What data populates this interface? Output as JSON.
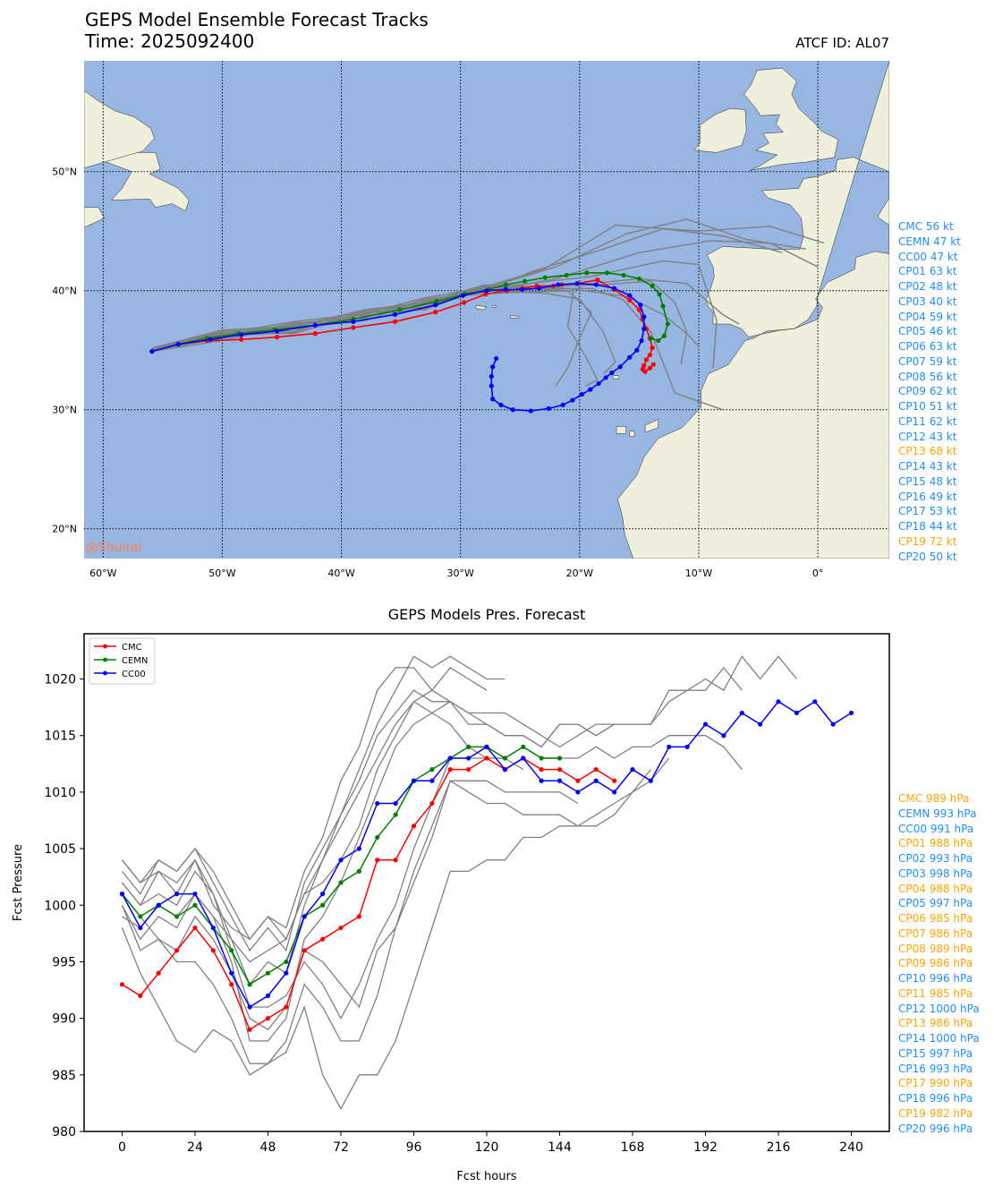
{
  "header": {
    "title": "GEPS Model Ensemble Forecast Tracks",
    "time": "Time: 2025092400",
    "atcf": "ATCF ID: AL07",
    "watermark": "@Shuitai"
  },
  "colors": {
    "ocean": "#98b6e2",
    "land": "#efefdb",
    "cmc": "#ff0000",
    "cemn": "#008000",
    "cc00": "#0000ff",
    "member": "#808080",
    "label_blue": "#1e90ff",
    "label_orange": "#ffa500",
    "watermark": "#ff7f50"
  },
  "chart_data": [
    {
      "type": "line",
      "title": "GEPS Model Ensemble Forecast Tracks",
      "subtitle": "Time: 2025092400",
      "xlim": [
        -61.6,
        6.0
      ],
      "ylim": [
        17.5,
        59.3
      ],
      "x_ticks": [
        -60,
        -50,
        -40,
        -30,
        -20,
        -10,
        0
      ],
      "x_tick_labels": [
        "60°W",
        "50°W",
        "40°W",
        "30°W",
        "20°W",
        "10°W",
        "0°"
      ],
      "y_ticks": [
        20,
        30,
        40,
        50
      ],
      "y_tick_labels": [
        "20°N",
        "30°N",
        "40°N",
        "50°N"
      ],
      "grid": true,
      "series": [
        {
          "name": "CMC",
          "color": "#ff0000",
          "markers": true,
          "lon": [
            -55.9,
            -53.7,
            -51.3,
            -48.4,
            -45.4,
            -42.2,
            -39.0,
            -35.5,
            -32.1,
            -29.7,
            -27.9,
            -26.1,
            -24.8,
            -23.6,
            -22.2,
            -21.5,
            -20.2,
            -18.5,
            -17.1,
            -15.8,
            -15.0,
            -14.7,
            -14.4,
            -14.1,
            -13.9,
            -14.1,
            -14.4,
            -14.6,
            -14.7,
            -14.5,
            -14.1,
            -13.8
          ],
          "lat": [
            34.9,
            35.5,
            35.8,
            35.9,
            36.1,
            36.4,
            36.9,
            37.4,
            38.2,
            39.0,
            39.7,
            40.0,
            40.2,
            40.4,
            40.4,
            40.5,
            40.6,
            40.9,
            40.1,
            39.2,
            38.4,
            37.6,
            36.8,
            36.0,
            35.2,
            34.6,
            34.2,
            33.7,
            33.4,
            33.2,
            33.5,
            33.8
          ]
        },
        {
          "name": "CEMN",
          "color": "#008000",
          "markers": true,
          "lon": [
            -55.9,
            -53.7,
            -51.3,
            -48.6,
            -45.6,
            -42.2,
            -39.0,
            -35.1,
            -32.0,
            -29.6,
            -27.6,
            -26.2,
            -24.6,
            -22.9,
            -21.1,
            -19.4,
            -17.7,
            -16.3,
            -15.0,
            -13.9,
            -13.3,
            -13.0,
            -12.6,
            -12.9,
            -13.4,
            -14.0
          ],
          "lat": [
            34.9,
            35.5,
            36.0,
            36.4,
            36.7,
            37.1,
            37.6,
            38.4,
            39.1,
            39.7,
            40.1,
            40.5,
            40.8,
            41.1,
            41.3,
            41.5,
            41.5,
            41.3,
            41.0,
            40.4,
            39.7,
            38.7,
            37.2,
            36.2,
            35.8,
            36.0
          ]
        },
        {
          "name": "CC00",
          "color": "#0000ff",
          "markers": true,
          "lon": [
            -55.9,
            -53.7,
            -51.0,
            -48.4,
            -45.4,
            -42.2,
            -39.0,
            -35.5,
            -32.1,
            -29.8,
            -27.8,
            -26.2,
            -24.8,
            -23.4,
            -21.8,
            -20.2,
            -18.6,
            -17.1,
            -15.8,
            -14.9,
            -14.6,
            -14.6,
            -14.8,
            -15.2,
            -15.8,
            -16.6,
            -17.3,
            -17.8,
            -18.4,
            -19.1,
            -19.8,
            -20.6,
            -21.4,
            -22.6,
            -24.1,
            -25.6,
            -26.6,
            -27.3,
            -27.4,
            -27.4,
            -27.3,
            -27.0
          ],
          "lat": [
            34.9,
            35.5,
            35.9,
            36.3,
            36.6,
            37.1,
            37.4,
            38.0,
            38.8,
            39.6,
            40.0,
            40.1,
            40.1,
            40.2,
            40.5,
            40.6,
            40.5,
            40.2,
            39.6,
            38.8,
            37.8,
            36.8,
            35.8,
            35.0,
            34.4,
            33.6,
            33.1,
            32.7,
            32.2,
            31.7,
            31.3,
            30.8,
            30.4,
            30.1,
            29.9,
            30.0,
            30.4,
            30.9,
            32.0,
            32.8,
            33.6,
            34.3
          ]
        }
      ],
      "labels": [
        {
          "text": "CMC 56 kt",
          "color": "#1e90ff"
        },
        {
          "text": "CEMN 47 kt",
          "color": "#1e90ff"
        },
        {
          "text": "CC00 47 kt",
          "color": "#1e90ff"
        },
        {
          "text": "CP01 63 kt",
          "color": "#1e90ff"
        },
        {
          "text": "CP02 48 kt",
          "color": "#1e90ff"
        },
        {
          "text": "CP03 40 kt",
          "color": "#1e90ff"
        },
        {
          "text": "CP04 59 kt",
          "color": "#1e90ff"
        },
        {
          "text": "CP05 46 kt",
          "color": "#1e90ff"
        },
        {
          "text": "CP06 63 kt",
          "color": "#1e90ff"
        },
        {
          "text": "CP07 59 kt",
          "color": "#1e90ff"
        },
        {
          "text": "CP08 56 kt",
          "color": "#1e90ff"
        },
        {
          "text": "CP09 62 kt",
          "color": "#1e90ff"
        },
        {
          "text": "CP10 51 kt",
          "color": "#1e90ff"
        },
        {
          "text": "CP11 62 kt",
          "color": "#1e90ff"
        },
        {
          "text": "CP12 43 kt",
          "color": "#1e90ff"
        },
        {
          "text": "CP13 68 kt",
          "color": "#ffa500"
        },
        {
          "text": "CP14 43 kt",
          "color": "#1e90ff"
        },
        {
          "text": "CP15 48 kt",
          "color": "#1e90ff"
        },
        {
          "text": "CP16 49 kt",
          "color": "#1e90ff"
        },
        {
          "text": "CP17 53 kt",
          "color": "#1e90ff"
        },
        {
          "text": "CP18 44 kt",
          "color": "#1e90ff"
        },
        {
          "text": "CP19 72 kt",
          "color": "#ffa500"
        },
        {
          "text": "CP20 50 kt",
          "color": "#1e90ff"
        }
      ]
    },
    {
      "type": "line",
      "title": "GEPS Models Pres. Forecast",
      "xlabel": "Fcst hours",
      "ylabel": "Fcst Pressure",
      "xlim": [
        -12.5,
        252.5
      ],
      "ylim": [
        980,
        1024
      ],
      "x_ticks": [
        0,
        24,
        48,
        72,
        96,
        120,
        144,
        168,
        192,
        216,
        240
      ],
      "y_ticks": [
        980,
        985,
        990,
        995,
        1000,
        1005,
        1010,
        1015,
        1020
      ],
      "grid": false,
      "legend": "upper-left",
      "series": [
        {
          "name": "CMC",
          "color": "#ff0000",
          "markers": true,
          "x": [
            0,
            6,
            12,
            18,
            24,
            30,
            36,
            42,
            48,
            54,
            60,
            66,
            72,
            78,
            84,
            90,
            96,
            102,
            108,
            114,
            120,
            126,
            132,
            138,
            144,
            150,
            156,
            162
          ],
          "y": [
            993,
            992,
            994,
            996,
            998,
            996,
            993,
            989,
            990,
            991,
            996,
            997,
            998,
            999,
            1004,
            1004,
            1007,
            1009,
            1012,
            1012,
            1013,
            1012,
            1013,
            1012,
            1012,
            1011,
            1012,
            1011
          ]
        },
        {
          "name": "CEMN",
          "color": "#008000",
          "markers": true,
          "x": [
            0,
            6,
            12,
            18,
            24,
            30,
            36,
            42,
            48,
            54,
            60,
            66,
            72,
            78,
            84,
            90,
            96,
            102,
            108,
            114,
            120,
            126,
            132,
            138,
            144
          ],
          "y": [
            1001,
            999,
            1000,
            999,
            1000,
            998,
            996,
            993,
            994,
            995,
            999,
            1000,
            1002,
            1003,
            1006,
            1008,
            1011,
            1012,
            1013,
            1014,
            1014,
            1013,
            1014,
            1013,
            1013
          ]
        },
        {
          "name": "CC00",
          "color": "#0000ff",
          "markers": true,
          "x": [
            0,
            6,
            12,
            18,
            24,
            30,
            36,
            42,
            48,
            54,
            60,
            66,
            72,
            78,
            84,
            90,
            96,
            102,
            108,
            114,
            120,
            126,
            132,
            138,
            144,
            150,
            156,
            162,
            168,
            174,
            180,
            186,
            192,
            198,
            204,
            210,
            216,
            222,
            228,
            234,
            240
          ],
          "y": [
            1001,
            998,
            1000,
            1001,
            1001,
            998,
            994,
            991,
            992,
            994,
            999,
            1001,
            1004,
            1005,
            1009,
            1009,
            1011,
            1011,
            1013,
            1013,
            1014,
            1012,
            1013,
            1011,
            1011,
            1010,
            1011,
            1010,
            1012,
            1011,
            1014,
            1014,
            1016,
            1015,
            1017,
            1016,
            1018,
            1017,
            1018,
            1016,
            1017
          ]
        }
      ],
      "labels": [
        {
          "text": "CMC 989 hPa",
          "color": "#ffa500"
        },
        {
          "text": "CEMN 993 hPa",
          "color": "#1e90ff"
        },
        {
          "text": "CC00 991 hPa",
          "color": "#1e90ff"
        },
        {
          "text": "CP01 988 hPa",
          "color": "#ffa500"
        },
        {
          "text": "CP02 993 hPa",
          "color": "#1e90ff"
        },
        {
          "text": "CP03 998 hPa",
          "color": "#1e90ff"
        },
        {
          "text": "CP04 988 hPa",
          "color": "#ffa500"
        },
        {
          "text": "CP05 997 hPa",
          "color": "#1e90ff"
        },
        {
          "text": "CP06 985 hPa",
          "color": "#ffa500"
        },
        {
          "text": "CP07 986 hPa",
          "color": "#ffa500"
        },
        {
          "text": "CP08 989 hPa",
          "color": "#ffa500"
        },
        {
          "text": "CP09 986 hPa",
          "color": "#ffa500"
        },
        {
          "text": "CP10 996 hPa",
          "color": "#1e90ff"
        },
        {
          "text": "CP11 985 hPa",
          "color": "#ffa500"
        },
        {
          "text": "CP12 1000 hPa",
          "color": "#1e90ff"
        },
        {
          "text": "CP13 986 hPa",
          "color": "#ffa500"
        },
        {
          "text": "CP14 1000 hPa",
          "color": "#1e90ff"
        },
        {
          "text": "CP15 997 hPa",
          "color": "#1e90ff"
        },
        {
          "text": "CP16 993 hPa",
          "color": "#1e90ff"
        },
        {
          "text": "CP17 990 hPa",
          "color": "#ffa500"
        },
        {
          "text": "CP18 996 hPa",
          "color": "#1e90ff"
        },
        {
          "text": "CP19 982 hPa",
          "color": "#ffa500"
        },
        {
          "text": "CP20 996 hPa",
          "color": "#1e90ff"
        }
      ]
    }
  ]
}
